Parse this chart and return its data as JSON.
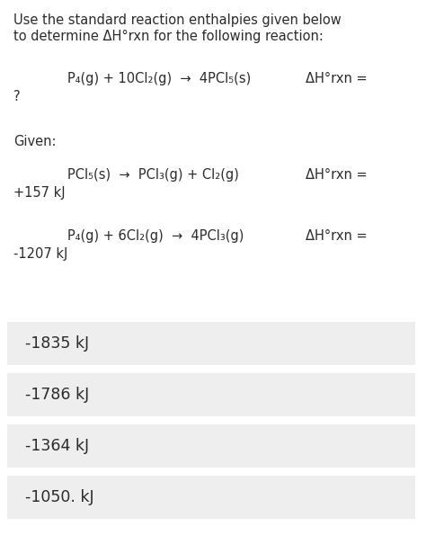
{
  "title_line1": "Use the standard reaction enthalpies given below",
  "title_line2": "to determine ΔH°rxn for the following reaction:",
  "reaction_main": "P₄(g) + 10Cl₂(g)  →  4PCl₅(s)",
  "reaction_main_dH": "ΔH°rxn =",
  "reaction_main_result": "?",
  "given_label": "Given:",
  "reaction1": "PCl₅(s)  →  PCl₃(g) + Cl₂(g)",
  "reaction1_dH": "ΔH°rxn =",
  "reaction1_result": "+157 kJ",
  "reaction2": "P₄(g) + 6Cl₂(g)  →  4PCl₃(g)",
  "reaction2_dH": "ΔH°rxn =",
  "reaction2_result": "-1207 kJ",
  "options": [
    "-1835 kJ",
    "-1786 kJ",
    "-1364 kJ",
    "-1050. kJ"
  ],
  "bg_color": "#ffffff",
  "option_bg_color": "#eeeeee",
  "text_color": "#2b2b2b",
  "font_size_title": 10.5,
  "font_size_reaction": 10.5,
  "font_size_option": 12.5
}
